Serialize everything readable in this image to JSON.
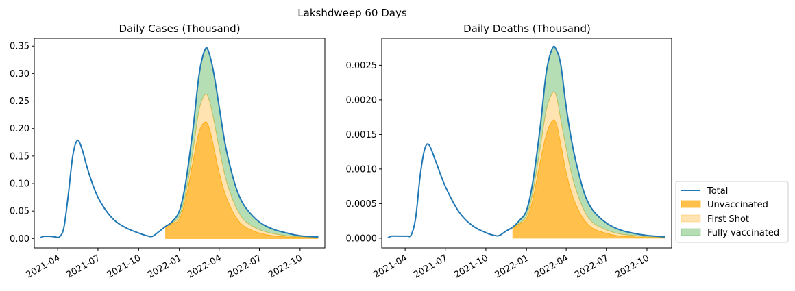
{
  "suptitle": "Lakshdweep 60 Days",
  "colors": {
    "total": "#1f77b4",
    "unvaccinated": "#ffa500",
    "first_shot": "#ffd280",
    "fully_vaccinated": "#2ca02c"
  },
  "legend": {
    "placement": "outside-right-bottom",
    "items": [
      "Total",
      "Unvaccinated",
      "First Shot",
      "Fully vaccinated"
    ]
  },
  "chart_data": [
    {
      "type": "area",
      "title": "Daily Cases (Thousand)",
      "xlabel": "",
      "ylabel": "",
      "x_range": [
        "2021-02-07",
        "2022-11-26"
      ],
      "ylim": [
        -0.017,
        0.364
      ],
      "x_ticks": [
        "2021-04-01",
        "2021-07-01",
        "2021-10-01",
        "2022-01-01",
        "2022-04-01",
        "2022-07-01",
        "2022-10-01"
      ],
      "x_tick_labels": [
        "2021-04",
        "2021-07",
        "2021-10",
        "2022-01",
        "2022-04",
        "2022-07",
        "2022-10"
      ],
      "y_ticks": [
        0.0,
        0.05,
        0.1,
        0.15,
        0.2,
        0.25,
        0.3,
        0.35
      ],
      "y_tick_labels": [
        "0.00",
        "0.05",
        "0.10",
        "0.15",
        "0.20",
        "0.25",
        "0.30",
        "0.35"
      ],
      "series": [
        {
          "name": "Total",
          "kind": "line",
          "x": [
            "2021-02-22",
            "2021-03-01",
            "2021-03-15",
            "2021-03-26",
            "2021-04-05",
            "2021-04-15",
            "2021-04-25",
            "2021-05-05",
            "2021-05-15",
            "2021-05-25",
            "2021-06-10",
            "2021-07-01",
            "2021-08-01",
            "2021-09-01",
            "2021-10-01",
            "2021-10-20",
            "2021-11-01",
            "2021-11-15",
            "2021-12-01",
            "2021-12-15",
            "2022-01-01",
            "2022-01-15",
            "2022-02-01",
            "2022-02-15",
            "2022-03-01",
            "2022-03-10",
            "2022-03-20",
            "2022-04-01",
            "2022-04-15",
            "2022-05-01",
            "2022-05-15",
            "2022-06-01",
            "2022-07-01",
            "2022-08-01",
            "2022-09-01",
            "2022-10-01",
            "2022-11-10"
          ],
          "y": [
            0.002,
            0.004,
            0.004,
            0.003,
            0.003,
            0.02,
            0.08,
            0.15,
            0.178,
            0.165,
            0.12,
            0.075,
            0.038,
            0.02,
            0.01,
            0.005,
            0.004,
            0.012,
            0.022,
            0.03,
            0.05,
            0.1,
            0.2,
            0.3,
            0.345,
            0.335,
            0.3,
            0.24,
            0.17,
            0.115,
            0.08,
            0.055,
            0.03,
            0.017,
            0.01,
            0.005,
            0.003
          ]
        },
        {
          "name": "Unvaccinated",
          "kind": "area",
          "x": [
            "2021-12-01",
            "2021-12-15",
            "2022-01-01",
            "2022-01-15",
            "2022-02-01",
            "2022-02-15",
            "2022-03-01",
            "2022-03-10",
            "2022-03-20",
            "2022-04-01",
            "2022-04-15",
            "2022-05-01",
            "2022-05-15",
            "2022-06-01",
            "2022-07-01",
            "2022-08-01",
            "2022-09-01",
            "2022-10-01",
            "2022-11-10"
          ],
          "y": [
            0.022,
            0.027,
            0.035,
            0.07,
            0.14,
            0.195,
            0.212,
            0.2,
            0.165,
            0.12,
            0.08,
            0.05,
            0.032,
            0.02,
            0.01,
            0.005,
            0.003,
            0.002,
            0.001
          ]
        },
        {
          "name": "First Shot",
          "kind": "area",
          "x": [
            "2021-12-01",
            "2021-12-15",
            "2022-01-01",
            "2022-01-15",
            "2022-02-01",
            "2022-02-15",
            "2022-03-01",
            "2022-03-10",
            "2022-03-20",
            "2022-04-01",
            "2022-04-15",
            "2022-05-01",
            "2022-05-15",
            "2022-06-01",
            "2022-07-01",
            "2022-08-01",
            "2022-09-01",
            "2022-10-01",
            "2022-11-10"
          ],
          "y": [
            0.022,
            0.028,
            0.04,
            0.08,
            0.16,
            0.235,
            0.262,
            0.25,
            0.215,
            0.165,
            0.112,
            0.072,
            0.048,
            0.03,
            0.016,
            0.009,
            0.005,
            0.003,
            0.002
          ]
        },
        {
          "name": "Fully vaccinated",
          "kind": "area",
          "x": [
            "2021-12-01",
            "2021-12-15",
            "2022-01-01",
            "2022-01-15",
            "2022-02-01",
            "2022-02-15",
            "2022-03-01",
            "2022-03-10",
            "2022-03-20",
            "2022-04-01",
            "2022-04-15",
            "2022-05-01",
            "2022-05-15",
            "2022-06-01",
            "2022-07-01",
            "2022-08-01",
            "2022-09-01",
            "2022-10-01",
            "2022-11-10"
          ],
          "y": [
            0.022,
            0.03,
            0.05,
            0.1,
            0.2,
            0.3,
            0.345,
            0.335,
            0.3,
            0.24,
            0.17,
            0.115,
            0.08,
            0.055,
            0.03,
            0.017,
            0.01,
            0.005,
            0.003
          ]
        }
      ]
    },
    {
      "type": "area",
      "title": "Daily Deaths (Thousand)",
      "xlabel": "",
      "ylabel": "",
      "x_range": [
        "2021-02-07",
        "2022-11-26"
      ],
      "ylim": [
        -0.00014,
        0.00289
      ],
      "x_ticks": [
        "2021-04-01",
        "2021-07-01",
        "2021-10-01",
        "2022-01-01",
        "2022-04-01",
        "2022-07-01",
        "2022-10-01"
      ],
      "x_tick_labels": [
        "2021-04",
        "2021-07",
        "2021-10",
        "2022-01",
        "2022-04",
        "2022-07",
        "2022-10"
      ],
      "y_ticks": [
        0.0,
        0.0005,
        0.001,
        0.0015,
        0.002,
        0.0025
      ],
      "y_tick_labels": [
        "0.0000",
        "0.0005",
        "0.0010",
        "0.0015",
        "0.0020",
        "0.0025"
      ],
      "series": [
        {
          "name": "Total",
          "kind": "line",
          "x": [
            "2021-02-22",
            "2021-03-01",
            "2021-03-15",
            "2021-03-26",
            "2021-04-05",
            "2021-04-15",
            "2021-04-25",
            "2021-05-05",
            "2021-05-15",
            "2021-05-25",
            "2021-06-10",
            "2021-07-01",
            "2021-08-01",
            "2021-09-01",
            "2021-10-01",
            "2021-10-20",
            "2021-11-01",
            "2021-11-15",
            "2021-12-01",
            "2021-12-15",
            "2022-01-01",
            "2022-01-15",
            "2022-02-01",
            "2022-02-15",
            "2022-03-01",
            "2022-03-10",
            "2022-03-20",
            "2022-04-01",
            "2022-04-15",
            "2022-05-01",
            "2022-05-15",
            "2022-06-01",
            "2022-07-01",
            "2022-08-01",
            "2022-09-01",
            "2022-10-01",
            "2022-11-10"
          ],
          "y": [
            1e-05,
            3e-05,
            3e-05,
            3e-05,
            3e-05,
            5e-05,
            0.0003,
            0.0009,
            0.00128,
            0.00135,
            0.0011,
            0.00075,
            0.00038,
            0.00018,
            8e-05,
            4e-05,
            4e-05,
            0.0001,
            0.00016,
            0.00025,
            0.0004,
            0.0008,
            0.0016,
            0.0024,
            0.00275,
            0.00272,
            0.0025,
            0.0019,
            0.00135,
            0.0009,
            0.0006,
            0.0004,
            0.00022,
            0.00012,
            7e-05,
            4e-05,
            2e-05
          ]
        },
        {
          "name": "Unvaccinated",
          "kind": "area",
          "x": [
            "2021-12-01",
            "2021-12-15",
            "2022-01-01",
            "2022-01-15",
            "2022-02-01",
            "2022-02-15",
            "2022-03-01",
            "2022-03-10",
            "2022-03-20",
            "2022-04-01",
            "2022-04-15",
            "2022-05-01",
            "2022-05-15",
            "2022-06-01",
            "2022-07-01",
            "2022-08-01",
            "2022-09-01",
            "2022-10-01",
            "2022-11-10"
          ],
          "y": [
            0.00016,
            0.0002,
            0.00028,
            0.00055,
            0.0011,
            0.0015,
            0.0017,
            0.00165,
            0.00135,
            0.00095,
            0.00062,
            0.00038,
            0.00024,
            0.00014,
            7e-05,
            3e-05,
            2e-05,
            1e-05,
            1e-05
          ]
        },
        {
          "name": "First Shot",
          "kind": "area",
          "x": [
            "2021-12-01",
            "2021-12-15",
            "2022-01-01",
            "2022-01-15",
            "2022-02-01",
            "2022-02-15",
            "2022-03-01",
            "2022-03-10",
            "2022-03-20",
            "2022-04-01",
            "2022-04-15",
            "2022-05-01",
            "2022-05-15",
            "2022-06-01",
            "2022-07-01",
            "2022-08-01",
            "2022-09-01",
            "2022-10-01",
            "2022-11-10"
          ],
          "y": [
            0.00016,
            0.00021,
            0.00032,
            0.00065,
            0.0013,
            0.00185,
            0.0021,
            0.00205,
            0.0017,
            0.0013,
            0.00088,
            0.00056,
            0.00036,
            0.00022,
            0.00012,
            6e-05,
            4e-05,
            2e-05,
            1e-05
          ]
        },
        {
          "name": "Fully vaccinated",
          "kind": "area",
          "x": [
            "2021-12-01",
            "2021-12-15",
            "2022-01-01",
            "2022-01-15",
            "2022-02-01",
            "2022-02-15",
            "2022-03-01",
            "2022-03-10",
            "2022-03-20",
            "2022-04-01",
            "2022-04-15",
            "2022-05-01",
            "2022-05-15",
            "2022-06-01",
            "2022-07-01",
            "2022-08-01",
            "2022-09-01",
            "2022-10-01",
            "2022-11-10"
          ],
          "y": [
            0.00016,
            0.00025,
            0.0004,
            0.0008,
            0.0016,
            0.0024,
            0.00275,
            0.00272,
            0.0025,
            0.0019,
            0.00135,
            0.0009,
            0.0006,
            0.0004,
            0.00022,
            0.00012,
            7e-05,
            4e-05,
            2e-05
          ]
        }
      ]
    }
  ]
}
